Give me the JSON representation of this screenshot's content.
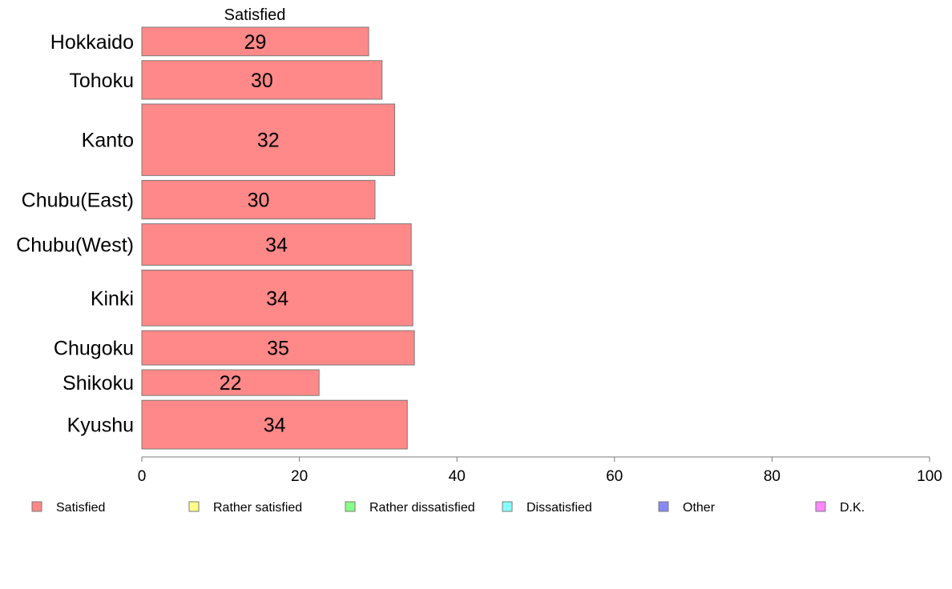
{
  "chart_data": {
    "type": "bar",
    "orientation": "horizontal",
    "categories": [
      "Hokkaido",
      "Tohoku",
      "Kanto",
      "Chubu(East)",
      "Chubu(West)",
      "Kinki",
      "Chugoku",
      "Shikoku",
      "Kyushu"
    ],
    "series": [
      {
        "name": "Satisfied",
        "values": [
          28.8,
          30.5,
          32.1,
          29.6,
          34.2,
          34.4,
          34.6,
          22.5,
          33.7
        ],
        "labels": [
          "29",
          "30",
          "32",
          "30",
          "34",
          "34",
          "35",
          "22",
          "34"
        ],
        "color": "#ff8888"
      }
    ],
    "category_weights": [
      1,
      1.35,
      2.5,
      1.35,
      1.45,
      1.95,
      1.2,
      0.9,
      1.7
    ],
    "top_label": "Satisfied",
    "xlim": [
      0,
      100
    ],
    "xticks": [
      0,
      20,
      40,
      60,
      80,
      100
    ],
    "grid": false,
    "legend": {
      "position": "bottom",
      "items": [
        {
          "label": "Satisfied",
          "color": "#ff8888"
        },
        {
          "label": "Rather satisfied",
          "color": "#ffff88"
        },
        {
          "label": "Rather dissatisfied",
          "color": "#88ff88"
        },
        {
          "label": "Dissatisfied",
          "color": "#88ffff"
        },
        {
          "label": "Other",
          "color": "#8888ff"
        },
        {
          "label": "D.K.",
          "color": "#ff88ff"
        }
      ]
    }
  }
}
